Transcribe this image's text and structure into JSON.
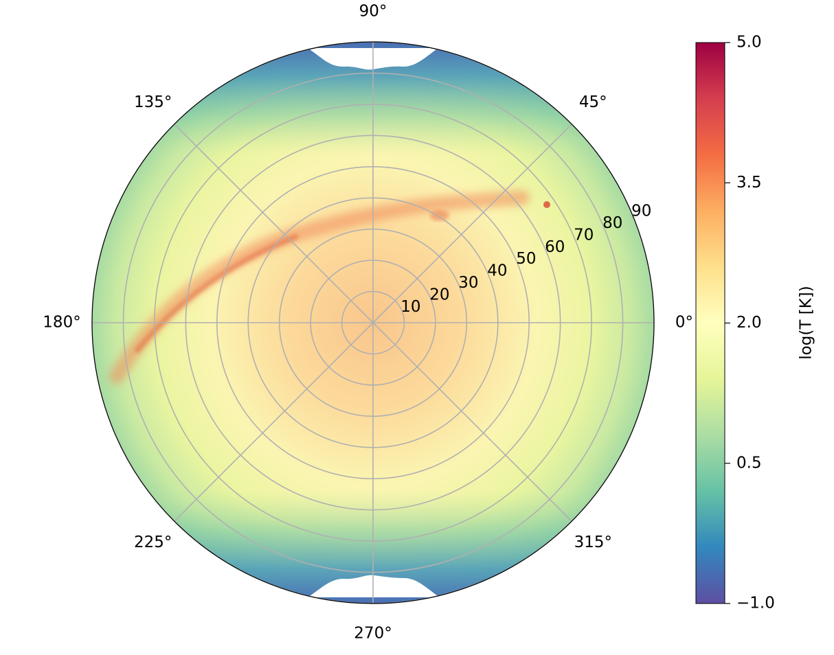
{
  "chart_data": {
    "type": "heatmap",
    "projection": "polar",
    "theta_tick_labels": [
      "0°",
      "45°",
      "90°",
      "135°",
      "180°",
      "225°",
      "270°",
      "315°"
    ],
    "theta_ticks_deg": [
      0,
      45,
      90,
      135,
      180,
      225,
      270,
      315
    ],
    "radial_tick_labels": [
      "10",
      "20",
      "30",
      "40",
      "50",
      "60",
      "70",
      "80",
      "90"
    ],
    "radial_ticks": [
      10,
      20,
      30,
      40,
      50,
      60,
      70,
      80,
      90
    ],
    "rlim": [
      0,
      90
    ],
    "grid": true,
    "colormap": "Spectral_r",
    "colorbar": {
      "label": "log(T [K])",
      "tick_labels": [
        "5.0",
        "3.5",
        "2.0",
        "0.5",
        "−1.0"
      ],
      "ticks": [
        5.0,
        3.5,
        2.0,
        0.5,
        -1.0
      ],
      "range": [
        -1.0,
        5.0
      ],
      "position": "right"
    },
    "colors": [
      "#5e4fa2",
      "#3288bd",
      "#66c2a5",
      "#abdda4",
      "#e6f598",
      "#ffffbf",
      "#fee08b",
      "#fdae61",
      "#f46d43",
      "#d53e4f",
      "#9e0142"
    ]
  }
}
